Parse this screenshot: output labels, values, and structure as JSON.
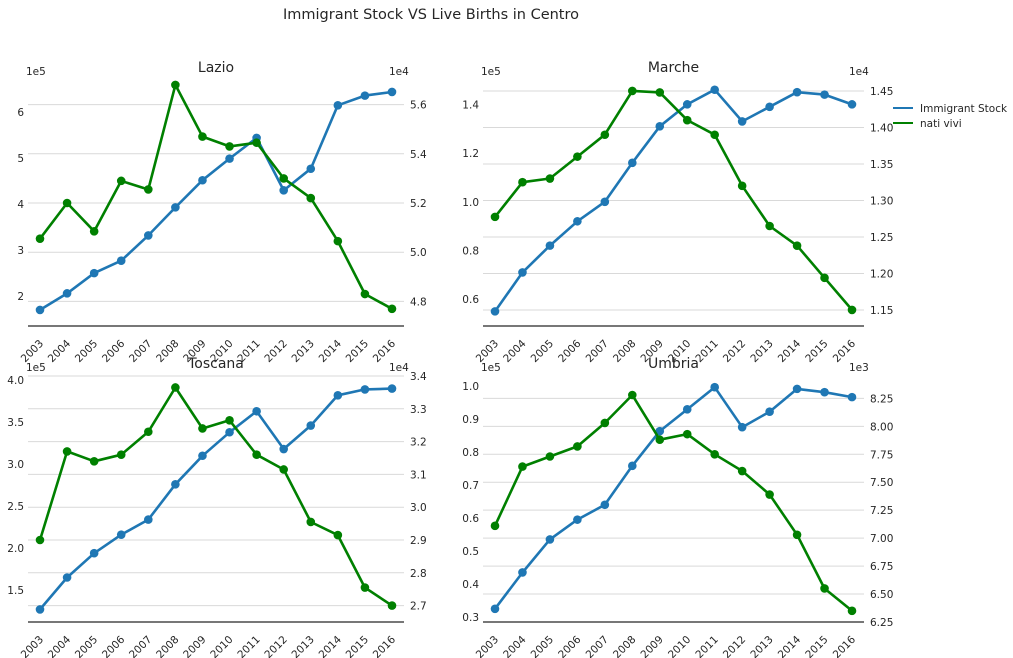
{
  "figure": {
    "title": "Immigrant Stock VS Live Births in Centro",
    "legend": {
      "placement": "right of top-right panel",
      "entries": [
        "Immigrant Stock",
        "nati vivi"
      ]
    },
    "colors": {
      "immigrant": "#1f77b4",
      "births": "#008000",
      "grid": "#d9d9d9",
      "axis": "#262626"
    }
  },
  "chart_data": [
    {
      "type": "line",
      "title": "Lazio",
      "grid": true,
      "categories": [
        "2003",
        "2004",
        "2005",
        "2006",
        "2007",
        "2008",
        "2009",
        "2010",
        "2011",
        "2012",
        "2013",
        "2014",
        "2015",
        "2016"
      ],
      "left_axis": {
        "offset_label": "1e5",
        "ylim": [
          1.35,
          6.7
        ],
        "ticks": [
          2,
          3,
          4,
          5,
          6
        ]
      },
      "right_axis": {
        "offset_label": "1e4",
        "ylim": [
          4.7,
          5.7
        ],
        "ticks": [
          4.8,
          5.0,
          5.2,
          5.4,
          5.6
        ]
      },
      "series": [
        {
          "name": "Immigrant Stock",
          "axis": "left",
          "values": [
            1.7,
            2.06,
            2.5,
            2.77,
            3.32,
            3.93,
            4.52,
            4.99,
            5.44,
            4.3,
            4.77,
            6.15,
            6.36,
            6.44
          ]
        },
        {
          "name": "nati vivi",
          "axis": "right",
          "values": [
            5.055,
            5.2,
            5.085,
            5.29,
            5.255,
            5.68,
            5.47,
            5.43,
            5.445,
            5.3,
            5.22,
            5.045,
            4.83,
            4.77
          ]
        }
      ]
    },
    {
      "type": "line",
      "title": "Marche",
      "grid": true,
      "categories": [
        "2003",
        "2004",
        "2005",
        "2006",
        "2007",
        "2008",
        "2009",
        "2010",
        "2011",
        "2012",
        "2013",
        "2014",
        "2015",
        "2016"
      ],
      "left_axis": {
        "offset_label": "1e5",
        "ylim": [
          0.49,
          1.5
        ],
        "ticks": [
          0.6,
          0.8,
          1.0,
          1.2,
          1.4
        ]
      },
      "right_axis": {
        "offset_label": "1e4",
        "ylim": [
          1.128,
          1.465
        ],
        "ticks": [
          1.15,
          1.2,
          1.25,
          1.3,
          1.35,
          1.4,
          1.45
        ]
      },
      "series": [
        {
          "name": "Immigrant Stock",
          "axis": "left",
          "values": [
            0.55,
            0.71,
            0.82,
            0.92,
            1.0,
            1.16,
            1.31,
            1.4,
            1.46,
            1.33,
            1.39,
            1.45,
            1.44,
            1.4
          ]
        },
        {
          "name": "nati vivi",
          "axis": "right",
          "values": [
            1.2775,
            1.325,
            1.33,
            1.36,
            1.39,
            1.45,
            1.448,
            1.41,
            1.39,
            1.32,
            1.265,
            1.238,
            1.194,
            1.15
          ]
        }
      ]
    },
    {
      "type": "line",
      "title": "Toscana",
      "grid": true,
      "categories": [
        "2003",
        "2004",
        "2005",
        "2006",
        "2007",
        "2008",
        "2009",
        "2010",
        "2011",
        "2012",
        "2013",
        "2014",
        "2015",
        "2016"
      ],
      "left_axis": {
        "offset_label": "1e5",
        "ylim": [
          1.12,
          4.05
        ],
        "ticks": [
          1.5,
          2.0,
          2.5,
          3.0,
          3.5,
          4.0
        ]
      },
      "right_axis": {
        "offset_label": "1e4",
        "ylim": [
          2.65,
          3.4
        ],
        "ticks": [
          2.7,
          2.8,
          2.9,
          3.0,
          3.1,
          3.2,
          3.3,
          3.4
        ]
      },
      "series": [
        {
          "name": "Immigrant Stock",
          "axis": "left",
          "values": [
            1.27,
            1.65,
            1.94,
            2.16,
            2.34,
            2.76,
            3.1,
            3.38,
            3.63,
            3.18,
            3.46,
            3.82,
            3.89,
            3.9
          ]
        },
        {
          "name": "nati vivi",
          "axis": "right",
          "values": [
            2.9,
            3.17,
            3.14,
            3.16,
            3.23,
            3.365,
            3.24,
            3.265,
            3.16,
            3.115,
            2.955,
            2.915,
            2.755,
            2.7
          ]
        }
      ]
    },
    {
      "type": "line",
      "title": "Umbria",
      "grid": true,
      "categories": [
        "2003",
        "2004",
        "2005",
        "2006",
        "2007",
        "2008",
        "2009",
        "2010",
        "2011",
        "2012",
        "2013",
        "2014",
        "2015",
        "2016"
      ],
      "left_axis": {
        "offset_label": "1e5",
        "ylim": [
          0.285,
          1.03
        ],
        "ticks": [
          0.3,
          0.4,
          0.5,
          0.6,
          0.7,
          0.8,
          0.9,
          1.0
        ]
      },
      "right_axis": {
        "offset_label": "1e3",
        "ylim": [
          6.25,
          8.45
        ],
        "ticks": [
          6.25,
          6.5,
          6.75,
          7.0,
          7.25,
          7.5,
          7.75,
          8.0,
          8.25
        ]
      },
      "series": [
        {
          "name": "Immigrant Stock",
          "axis": "left",
          "values": [
            0.325,
            0.435,
            0.535,
            0.595,
            0.64,
            0.758,
            0.863,
            0.929,
            0.996,
            0.875,
            0.922,
            0.991,
            0.981,
            0.966
          ]
        },
        {
          "name": "nati vivi",
          "axis": "right",
          "values": [
            7.11,
            7.64,
            7.73,
            7.82,
            8.03,
            8.28,
            7.88,
            7.93,
            7.75,
            7.6,
            7.39,
            7.03,
            6.55,
            6.35
          ]
        }
      ]
    }
  ]
}
